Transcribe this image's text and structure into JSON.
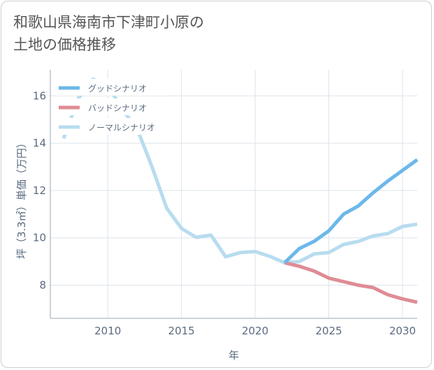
{
  "page": {
    "title": "和歌山県海南市下津町小原の\n土地の価格推移"
  },
  "chart_data": {
    "type": "line",
    "title": "和歌山県海南市下津町小原の土地の価格推移",
    "xlabel": "年",
    "ylabel": "坪（3.3㎡）単価（万円）",
    "xlim": [
      2006.1,
      2031
    ],
    "ylim": [
      6.6,
      17.1
    ],
    "x_ticks": [
      2010,
      2015,
      2020,
      2025,
      2030
    ],
    "y_ticks": [
      8,
      10,
      12,
      14,
      16
    ],
    "grid": true,
    "legend_position": "top-left",
    "series": [
      {
        "name": "グッドシナリオ",
        "color": "#6cb8ea",
        "x": [
          2022,
          2023,
          2024,
          2025,
          2026,
          2027,
          2028,
          2029,
          2030,
          2031
        ],
        "y": [
          8.95,
          9.55,
          9.85,
          10.3,
          11.0,
          11.35,
          11.9,
          12.4,
          12.85,
          13.3
        ]
      },
      {
        "name": "バッドシナリオ",
        "color": "#df8c94",
        "x": [
          2022,
          2023,
          2024,
          2025,
          2026,
          2027,
          2028,
          2029,
          2030,
          2031
        ],
        "y": [
          8.95,
          8.8,
          8.6,
          8.3,
          8.15,
          8.0,
          7.9,
          7.6,
          7.42,
          7.28
        ]
      },
      {
        "name": "ノーマルシナリオ",
        "color": "#b8dcef",
        "x": [
          2007,
          2008,
          2009,
          2010,
          2011,
          2012,
          2013,
          2014,
          2015,
          2016,
          2017,
          2018,
          2019,
          2020,
          2021,
          2022,
          2023,
          2024,
          2025,
          2026,
          2027,
          2028,
          2029,
          2030,
          2031
        ],
        "y": [
          14.2,
          15.9,
          16.7,
          16.45,
          15.4,
          14.6,
          13.0,
          11.25,
          10.4,
          10.02,
          10.12,
          9.2,
          9.38,
          9.42,
          9.22,
          8.95,
          9.0,
          9.32,
          9.38,
          9.72,
          9.85,
          10.08,
          10.18,
          10.48,
          10.58
        ]
      }
    ]
  }
}
